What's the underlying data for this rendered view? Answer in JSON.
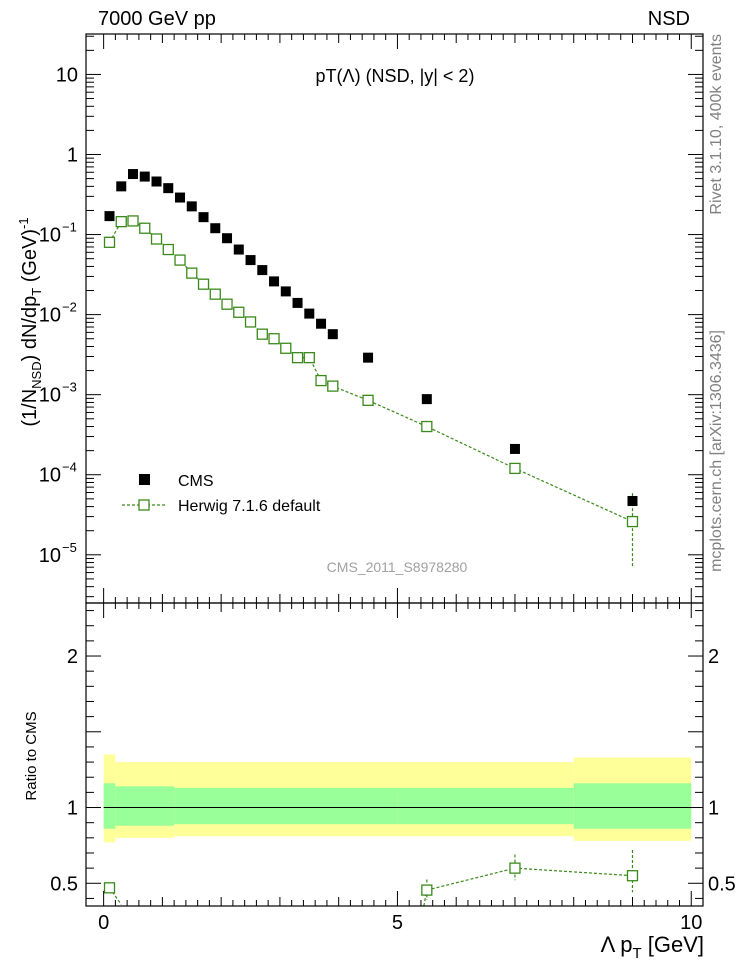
{
  "header": {
    "left": "7000 GeV pp",
    "right": "NSD"
  },
  "side_labels": {
    "rivet": "Rivet 3.1.10,  400k events",
    "mcplots": "mcplots.cern.ch [arXiv:1306.3436]"
  },
  "chart_data": {
    "type": "scatter",
    "title": "pT(Λ) (NSD, |y| < 2)",
    "analysis_label": "CMS_2011_S8978280",
    "xlabel": "Λ p_T [GeV]",
    "ylabel": "(1/N_NSD) dN/dp_T (GeV)^-1",
    "xlim": [
      -0.3,
      10.2
    ],
    "ylim": [
      2.5e-06,
      32
    ],
    "yscale": "log",
    "x_ticks": [
      0,
      5,
      10
    ],
    "legend": [
      "CMS",
      "Herwig 7.1.6 default"
    ],
    "legend_position": "bottom-left",
    "series": [
      {
        "name": "CMS",
        "style": "filled-square",
        "color": "#000000",
        "x": [
          0.1,
          0.3,
          0.5,
          0.7,
          0.9,
          1.1,
          1.3,
          1.5,
          1.7,
          1.9,
          2.1,
          2.3,
          2.5,
          2.7,
          2.9,
          3.1,
          3.3,
          3.5,
          3.7,
          3.9,
          4.5,
          5.5,
          7.0,
          9.0
        ],
        "y": [
          0.17,
          0.4,
          0.57,
          0.53,
          0.46,
          0.38,
          0.29,
          0.225,
          0.165,
          0.12,
          0.09,
          0.065,
          0.048,
          0.036,
          0.026,
          0.0195,
          0.014,
          0.0103,
          0.0077,
          0.0057,
          0.0029,
          0.00088,
          0.00021,
          4.7e-05
        ]
      },
      {
        "name": "Herwig 7.1.6 default",
        "style": "open-square-dashed",
        "color": "#3a8a1a",
        "x": [
          0.1,
          0.3,
          0.5,
          0.7,
          0.9,
          1.1,
          1.3,
          1.5,
          1.7,
          1.9,
          2.1,
          2.3,
          2.5,
          2.7,
          2.9,
          3.1,
          3.3,
          3.5,
          3.7,
          3.9,
          4.5,
          5.5,
          7.0,
          9.0
        ],
        "y": [
          0.08,
          0.145,
          0.148,
          0.12,
          0.088,
          0.065,
          0.048,
          0.033,
          0.024,
          0.018,
          0.0135,
          0.0107,
          0.0081,
          0.0057,
          0.005,
          0.0038,
          0.0029,
          0.0029,
          0.0015,
          0.00128,
          0.00085,
          0.0004,
          0.00012,
          2.6e-05
        ],
        "y_err_low": [
          0,
          0,
          0,
          0,
          0,
          0,
          0,
          0,
          0,
          0,
          0,
          0,
          0,
          0,
          0,
          0,
          0,
          0,
          0,
          0,
          0,
          0,
          0,
          1.9e-05
        ],
        "y_err_high": [
          0,
          0,
          0,
          0,
          0,
          0,
          0,
          0,
          0,
          0,
          0,
          0,
          0,
          0,
          0,
          0,
          0,
          0,
          0,
          0,
          0,
          0,
          0,
          3.3e-05
        ]
      }
    ],
    "ratio": {
      "ylabel": "Ratio to CMS",
      "ylim": [
        0.35,
        2.35
      ],
      "y_ticks": [
        0.5,
        1,
        2
      ],
      "reference_line": 1,
      "bands": {
        "bin_edges": [
          0,
          0.2,
          1.2,
          5,
          8,
          10
        ],
        "inner_color": "#99ff99",
        "outer_color": "#ffff99",
        "inner_low": [
          0.86,
          0.88,
          0.89,
          0.89,
          0.86
        ],
        "inner_high": [
          1.16,
          1.14,
          1.13,
          1.13,
          1.16
        ],
        "outer_low": [
          0.77,
          0.8,
          0.81,
          0.81,
          0.78
        ],
        "outer_high": [
          1.35,
          1.3,
          1.3,
          1.3,
          1.33
        ]
      },
      "series": {
        "name": "Herwig 7.1.6 default / CMS",
        "x": [
          0.1,
          0.3,
          5.5,
          7.0,
          9.0
        ],
        "y": [
          0.47,
          0.36,
          0.455,
          0.6,
          0.55
        ],
        "y_err_low": [
          0,
          0,
          0.065,
          0.08,
          0.11
        ],
        "y_err_high": [
          0,
          0,
          0.07,
          0.09,
          0.17
        ]
      }
    }
  }
}
